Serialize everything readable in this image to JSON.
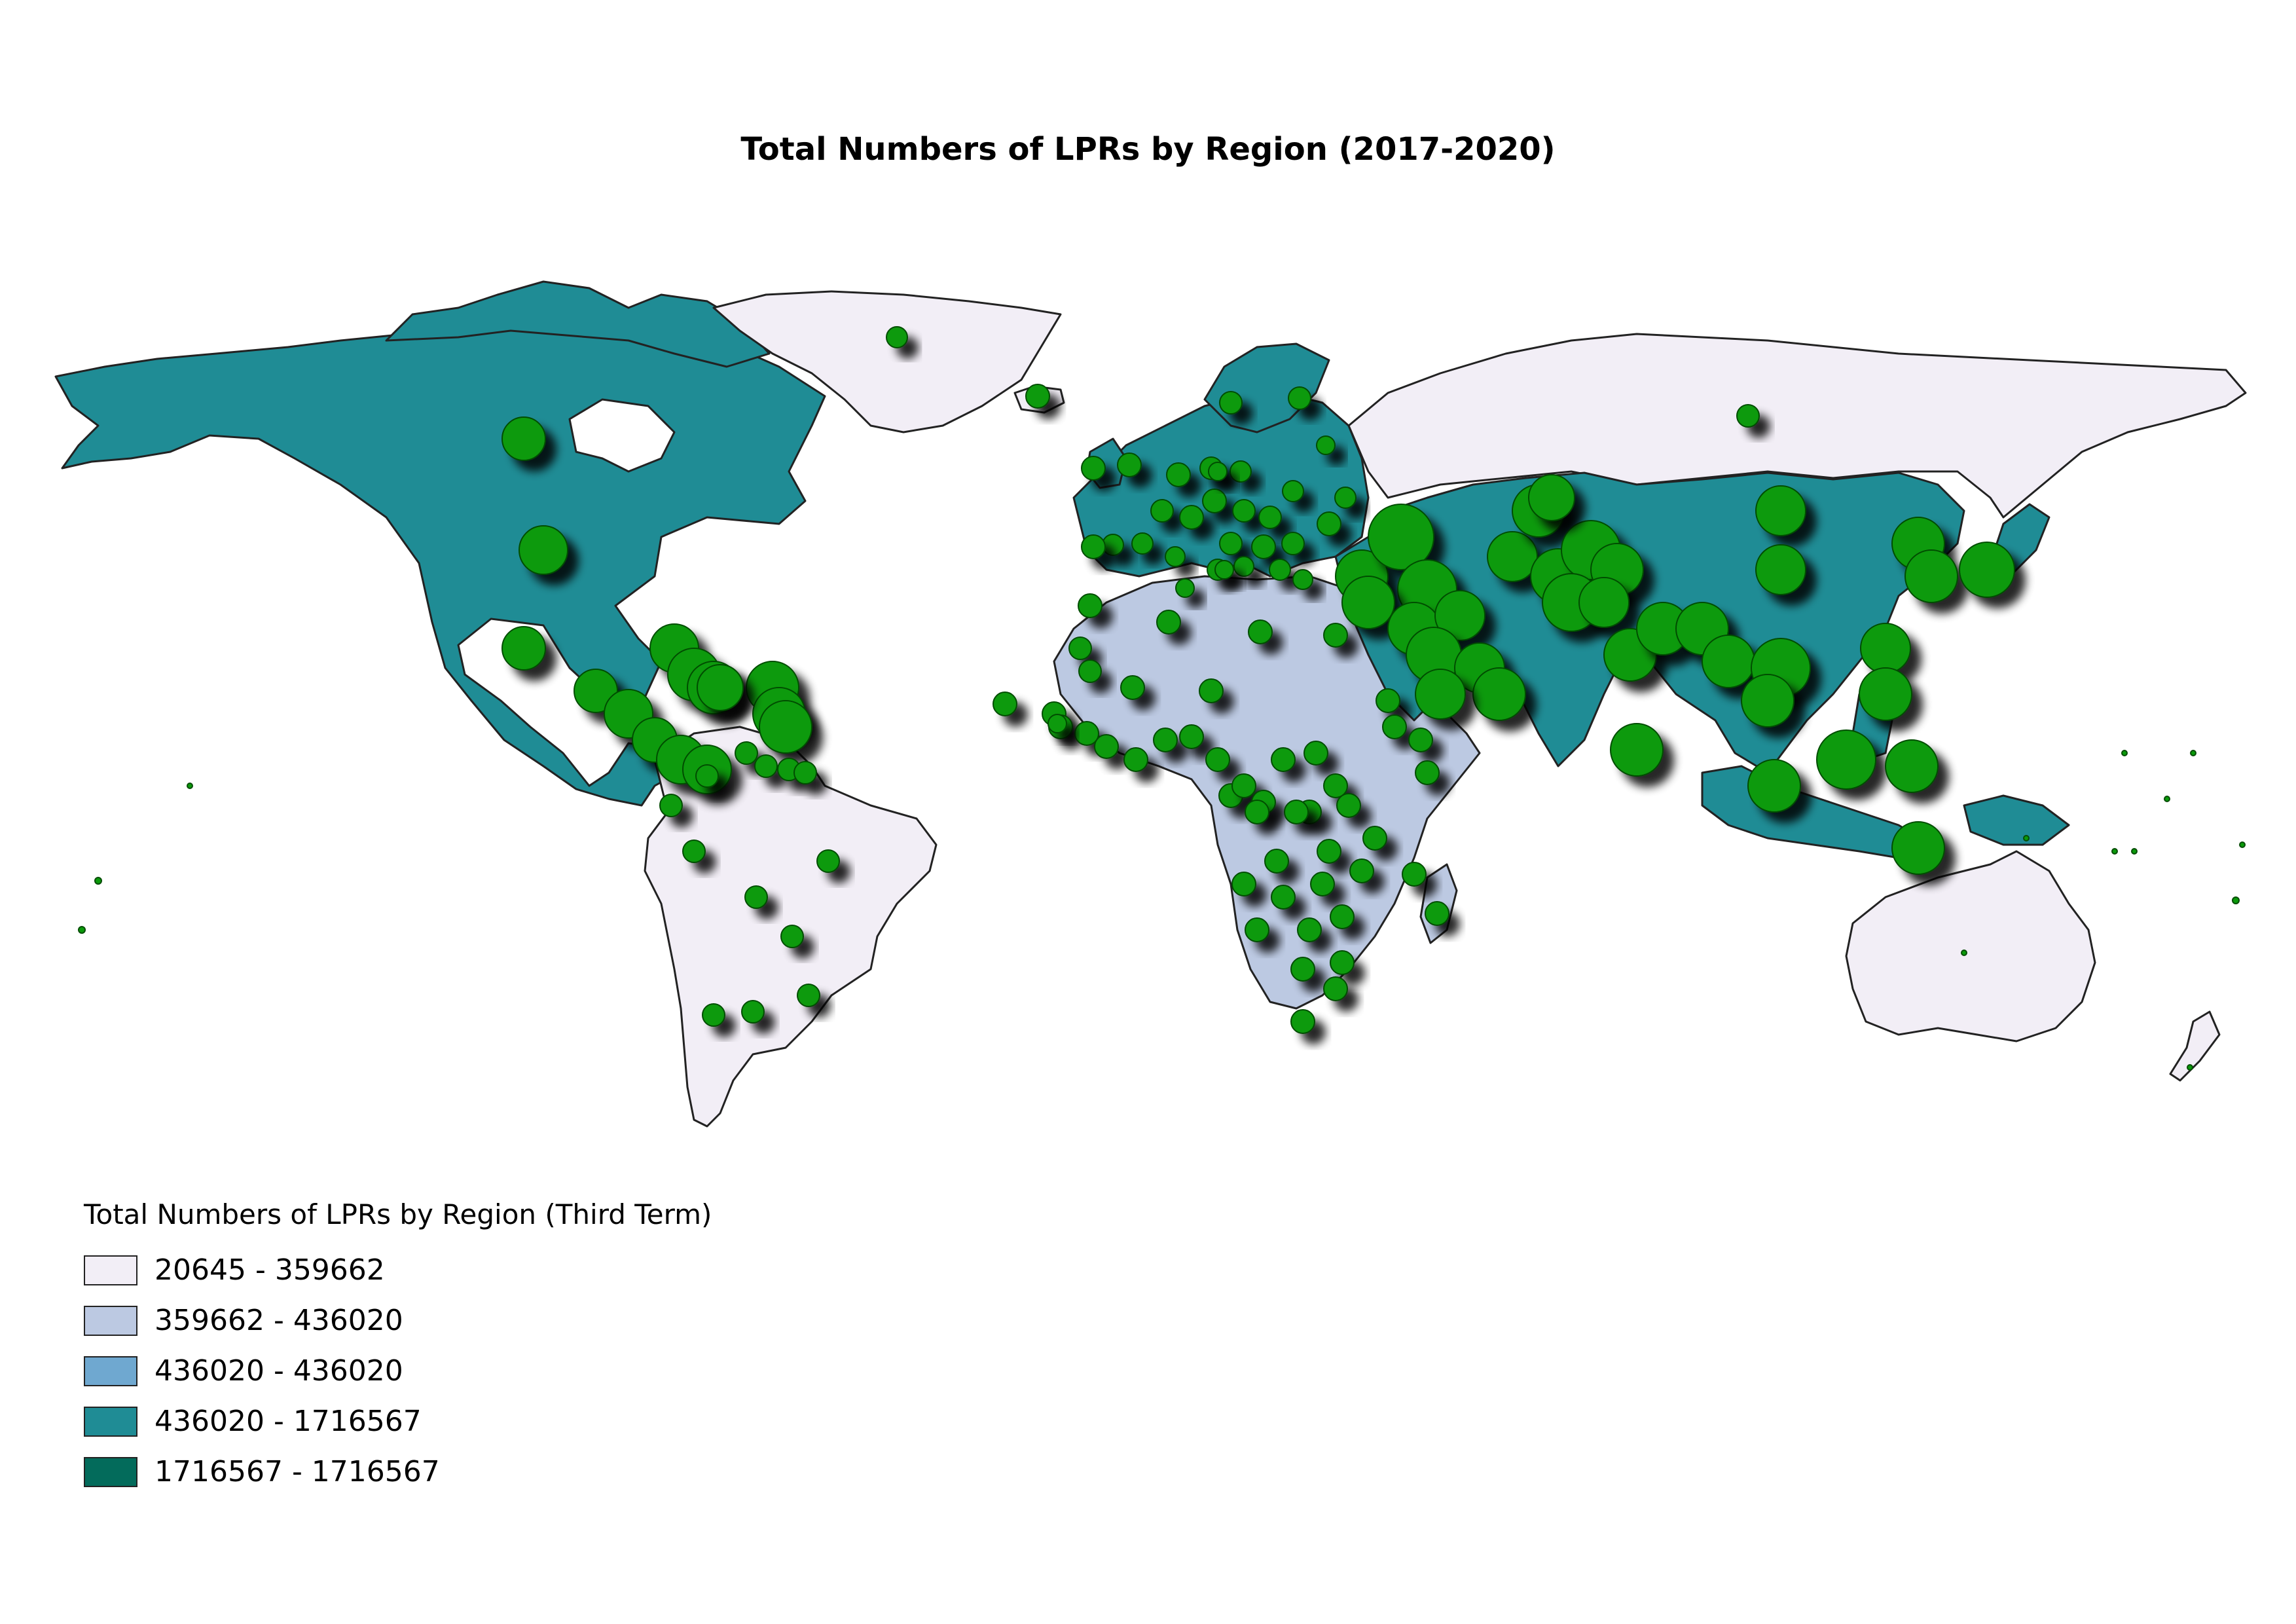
{
  "title": "Total Numbers of LPRs by Region (2017-2020)",
  "legend": {
    "title": "Total Numbers of LPRs by Region (Third Term)",
    "items": [
      {
        "label": "20645 - 359662",
        "color": "#f2eef6"
      },
      {
        "label": "359662 - 436020",
        "color": "#bcc9e2"
      },
      {
        "label": "436020 - 436020",
        "color": "#6fa8d0"
      },
      {
        "label": "436020 - 1716567",
        "color": "#1f8c95"
      },
      {
        "label": "1716567 - 1716567",
        "color": "#036b5b"
      }
    ]
  },
  "colors": {
    "border": "#222222",
    "bubble": "#0a9a0a",
    "bubble_stroke": "#064d06",
    "shadow": "#000000"
  }
}
